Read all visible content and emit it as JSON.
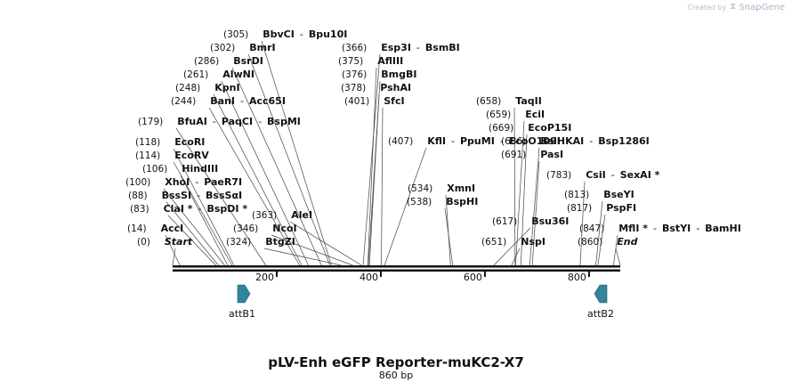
{
  "credit": {
    "prefix": "Created by",
    "brand": "SnapGene",
    "icon": "snapgene-logo-icon"
  },
  "plasmid": {
    "name": "pLV-Enh eGFP Reporter-muKC2-X7",
    "length_label": "860 bp",
    "length_bp": 860
  },
  "axis": {
    "ticks": [
      200,
      400,
      600,
      800
    ]
  },
  "sites": [
    {
      "pos": "(0)",
      "bp": 0,
      "labels": [
        "Start"
      ],
      "italic": true
    },
    {
      "pos": "(14)",
      "bp": 14,
      "labels": [
        "AccI"
      ]
    },
    {
      "pos": "(83)",
      "bp": 83,
      "labels": [
        "ClaI *",
        "BspDI *"
      ]
    },
    {
      "pos": "(88)",
      "bp": 88,
      "labels": [
        "BssSI",
        "BssSαI"
      ]
    },
    {
      "pos": "(100)",
      "bp": 100,
      "labels": [
        "XhoI",
        "PaeR7I"
      ]
    },
    {
      "pos": "(106)",
      "bp": 106,
      "labels": [
        "HindIII"
      ]
    },
    {
      "pos": "(114)",
      "bp": 114,
      "labels": [
        "EcoRV"
      ]
    },
    {
      "pos": "(118)",
      "bp": 118,
      "labels": [
        "EcoRI"
      ]
    },
    {
      "pos": "(179)",
      "bp": 179,
      "labels": [
        "BfuAI",
        "PaqCI",
        "BspMI"
      ]
    },
    {
      "pos": "(244)",
      "bp": 244,
      "labels": [
        "BanI",
        "Acc65I"
      ]
    },
    {
      "pos": "(248)",
      "bp": 248,
      "labels": [
        "KpnI"
      ]
    },
    {
      "pos": "(261)",
      "bp": 261,
      "labels": [
        "AlwNI"
      ]
    },
    {
      "pos": "(286)",
      "bp": 286,
      "labels": [
        "BsrDI"
      ]
    },
    {
      "pos": "(302)",
      "bp": 302,
      "labels": [
        "BmrI"
      ]
    },
    {
      "pos": "(305)",
      "bp": 305,
      "labels": [
        "BbvCI",
        "Bpu10I"
      ]
    },
    {
      "pos": "(324)",
      "bp": 324,
      "labels": [
        "BtgZI"
      ]
    },
    {
      "pos": "(346)",
      "bp": 346,
      "labels": [
        "NcoI"
      ]
    },
    {
      "pos": "(363)",
      "bp": 363,
      "labels": [
        "AleI"
      ]
    },
    {
      "pos": "(366)",
      "bp": 366,
      "labels": [
        "Esp3I",
        "BsmBI"
      ]
    },
    {
      "pos": "(375)",
      "bp": 375,
      "labels": [
        "AflIII"
      ]
    },
    {
      "pos": "(376)",
      "bp": 376,
      "labels": [
        "BmgBI"
      ]
    },
    {
      "pos": "(378)",
      "bp": 378,
      "labels": [
        "PshAI"
      ]
    },
    {
      "pos": "(401)",
      "bp": 401,
      "labels": [
        "SfcI"
      ]
    },
    {
      "pos": "(407)",
      "bp": 407,
      "labels": [
        "KflI",
        "PpuMI",
        "EcoO109I"
      ]
    },
    {
      "pos": "(534)",
      "bp": 534,
      "labels": [
        "XmnI"
      ]
    },
    {
      "pos": "(538)",
      "bp": 538,
      "labels": [
        "BspHI"
      ]
    },
    {
      "pos": "(617)",
      "bp": 617,
      "labels": [
        "Bsu36I"
      ]
    },
    {
      "pos": "(651)",
      "bp": 651,
      "labels": [
        "NspI"
      ]
    },
    {
      "pos": "(658)",
      "bp": 658,
      "labels": [
        "TaqII"
      ]
    },
    {
      "pos": "(659)",
      "bp": 659,
      "labels": [
        "EciI"
      ]
    },
    {
      "pos": "(669)",
      "bp": 669,
      "labels": [
        "EcoP15I"
      ]
    },
    {
      "pos": "(686)",
      "bp": 686,
      "labels": [
        "BsiHKAI",
        "Bsp1286I"
      ]
    },
    {
      "pos": "(691)",
      "bp": 691,
      "labels": [
        "PasI"
      ]
    },
    {
      "pos": "(783)",
      "bp": 783,
      "labels": [
        "CsiI",
        "SexAI *"
      ]
    },
    {
      "pos": "(813)",
      "bp": 813,
      "labels": [
        "BseYI"
      ]
    },
    {
      "pos": "(817)",
      "bp": 817,
      "labels": [
        "PspFI"
      ]
    },
    {
      "pos": "(847)",
      "bp": 847,
      "labels": [
        "MflI *",
        "BstYI",
        "BamHI"
      ]
    },
    {
      "pos": "(860)",
      "bp": 860,
      "labels": [
        "End"
      ],
      "italic": true
    }
  ],
  "features": [
    {
      "name": "attB1",
      "direction": "forward",
      "color": "#31849b"
    },
    {
      "name": "attB2",
      "direction": "reverse",
      "color": "#31849b"
    }
  ]
}
